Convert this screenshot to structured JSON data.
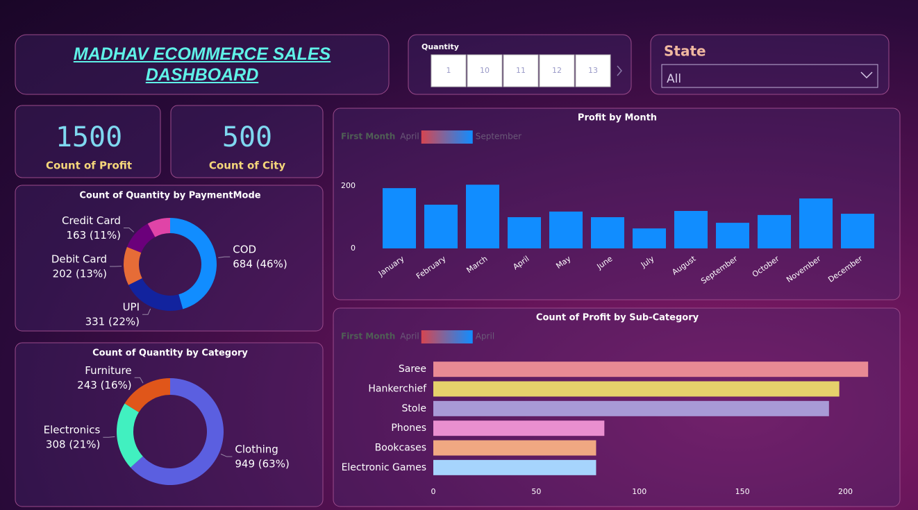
{
  "header": {
    "title": "MADHAV ECOMMERCE SALES DASHBOARD"
  },
  "slicers": {
    "quantity": {
      "label": "Quantity",
      "options": [
        1,
        10,
        11,
        12,
        13
      ]
    },
    "state": {
      "label": "State",
      "value": "All"
    }
  },
  "kpis": [
    {
      "value": 1500,
      "label": "Count of Profit"
    },
    {
      "value": 500,
      "label": "Count of City"
    }
  ],
  "chart_data": [
    {
      "type": "bar",
      "title": "Profit by Month",
      "legend": {
        "title": "First Month",
        "min": "April",
        "max": "September",
        "colors": [
          "#d64550",
          "#118dff"
        ]
      },
      "categories": [
        "January",
        "February",
        "March",
        "April",
        "May",
        "June",
        "July",
        "August",
        "September",
        "October",
        "November",
        "December"
      ],
      "values": [
        193,
        140,
        204,
        100,
        118,
        100,
        64,
        120,
        82,
        107,
        160,
        111
      ],
      "color": "#118dff",
      "ylim": [
        0,
        220
      ],
      "yticks": [
        0,
        200
      ]
    },
    {
      "type": "donut",
      "title": "Count of Quantity by PaymentMode",
      "categories": [
        "COD",
        "UPI",
        "Debit Card",
        "Credit Card",
        null
      ],
      "values": [
        684,
        331,
        202,
        163,
        120
      ],
      "value_labels": [
        "684 (46%)",
        "331 (22%)",
        "202 (13%)",
        "163 (11%)",
        null
      ],
      "colors": [
        "#118dff",
        "#12239e",
        "#e66c37",
        "#6b007b",
        "#e044a7"
      ]
    },
    {
      "type": "donut",
      "title": "Count of Quantity by Category",
      "categories": [
        "Clothing",
        "Electronics",
        "Furniture"
      ],
      "values": [
        949,
        308,
        243
      ],
      "value_labels": [
        "949 (63%)",
        "308 (21%)",
        "243 (16%)"
      ],
      "colors": [
        "#5b5fe0",
        "#41f0c0",
        "#e0561a"
      ]
    },
    {
      "type": "hbar",
      "title": "Count of Profit by Sub-Category",
      "legend": {
        "title": "First Month",
        "min": "April",
        "max": "April",
        "colors": [
          "#d64550",
          "#118dff"
        ]
      },
      "categories": [
        "Saree",
        "Hankerchief",
        "Stole",
        "Phones",
        "Bookcases",
        "Electronic Games"
      ],
      "values": [
        211,
        197,
        192,
        83,
        79,
        79
      ],
      "colors": [
        "#e88a94",
        "#e6d16b",
        "#a89ad6",
        "#e98fcf",
        "#f0a882",
        "#a6d4fd"
      ],
      "xlim": [
        0,
        217
      ],
      "xticks": [
        0,
        50,
        100,
        150,
        200
      ]
    }
  ]
}
